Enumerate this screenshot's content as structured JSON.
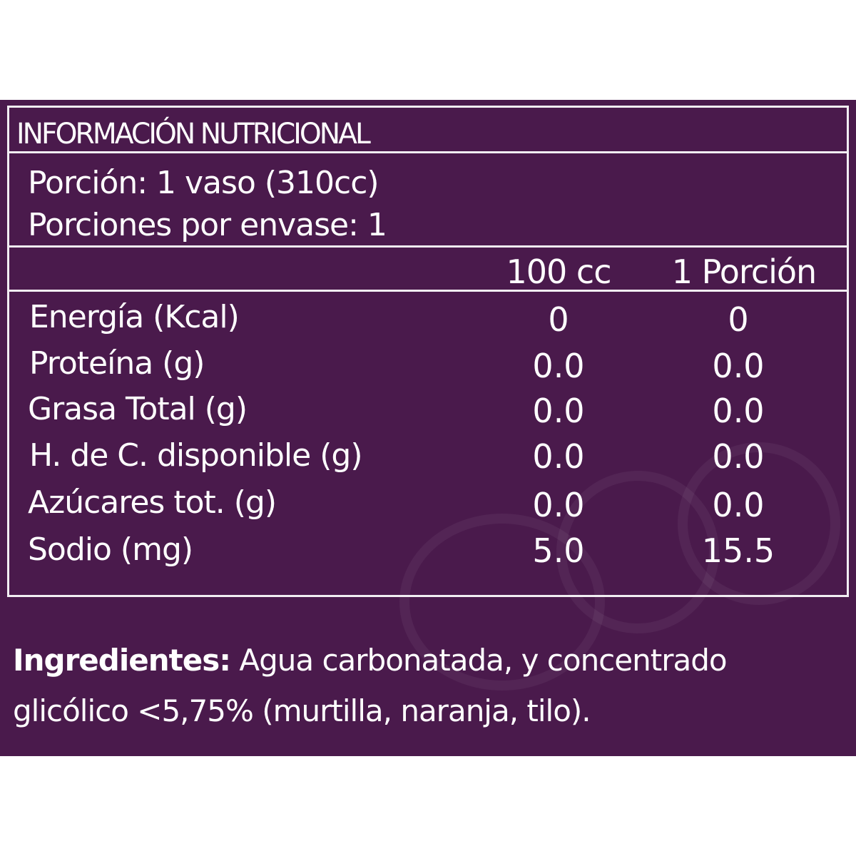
{
  "colors": {
    "background": "#4a1a4c",
    "text": "#ffffff"
  },
  "title": "INFORMACIÓN NUTRICIONAL",
  "serving": {
    "portion": "Porción: 1 vaso (310cc)",
    "per_container": "Porciones por envase: 1"
  },
  "columns": [
    "100 cc",
    "1 Porción"
  ],
  "rows": [
    {
      "label": "Energía (Kcal)",
      "per100": "0",
      "portion": "0"
    },
    {
      "label": "Proteína (g)",
      "per100": "0.0",
      "portion": "0.0"
    },
    {
      "label": "Grasa Total (g)",
      "per100": "0.0",
      "portion": "0.0"
    },
    {
      "label": "H. de C. disponible (g)",
      "per100": "0.0",
      "portion": "0.0"
    },
    {
      "label": "Azúcares tot. (g)",
      "per100": "0.0",
      "portion": "0.0"
    },
    {
      "label": "Sodio (mg)",
      "per100": "5.0",
      "portion": "15.5"
    }
  ],
  "ingredients": {
    "label": "Ingredientes:",
    "line1": "Agua carbonatada, y concentrado",
    "line2": "glicólico <5,75% (murtilla, naranja, tilo)."
  }
}
